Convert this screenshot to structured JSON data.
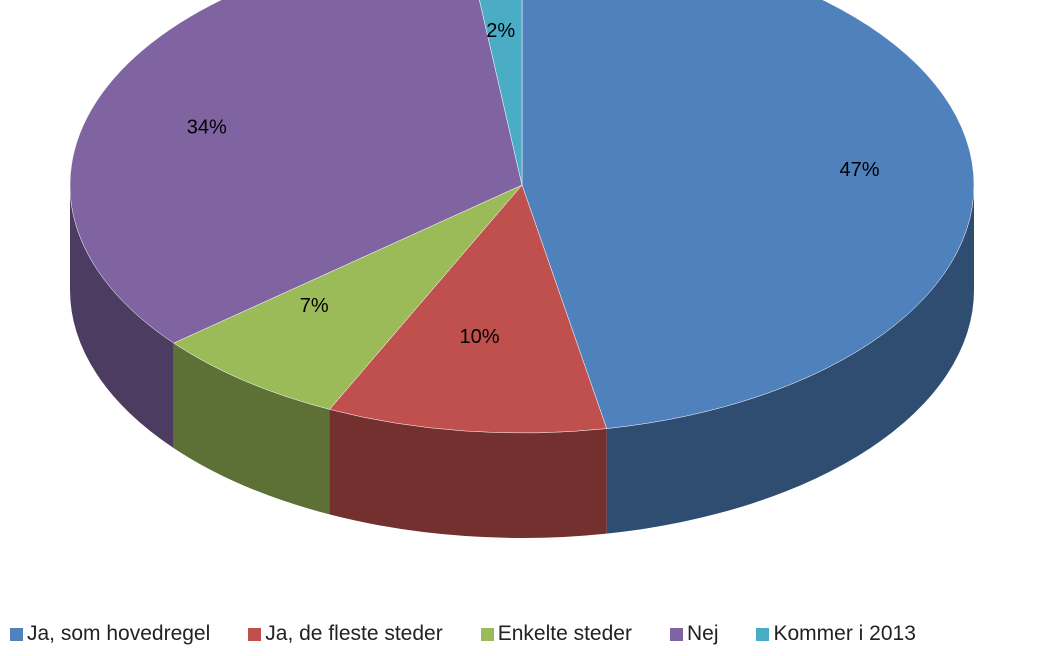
{
  "chart_data": {
    "type": "pie",
    "categories": [
      "Ja, som hovedregel",
      "Ja, de fleste steder",
      "Enkelte steder",
      "Nej",
      "Kommer i 2013"
    ],
    "values": [
      47,
      10,
      7,
      34,
      2
    ],
    "value_labels": [
      "47%",
      "10%",
      "7%",
      "34%",
      "2%"
    ],
    "colors": [
      "#4f81bd",
      "#c0504d",
      "#9bbb59",
      "#8064a2",
      "#4bacc6"
    ],
    "legend": "bottom"
  }
}
